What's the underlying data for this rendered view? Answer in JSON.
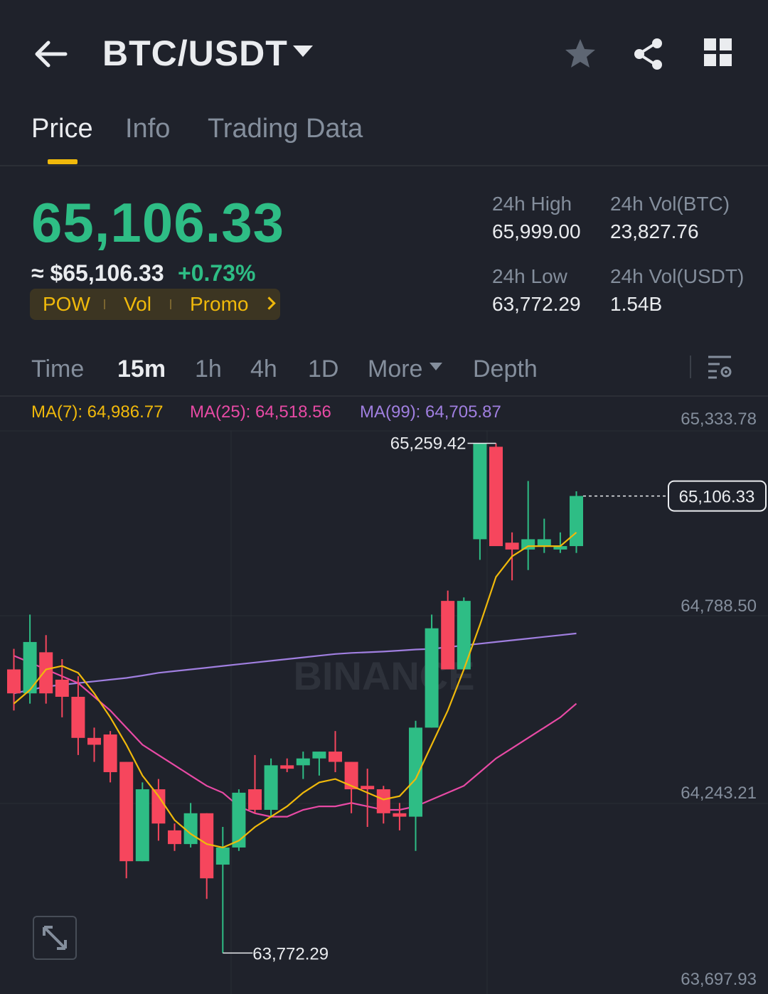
{
  "header": {
    "pair": "BTC/USDT",
    "icons": [
      "back-arrow-icon",
      "caret-down-icon",
      "star-icon",
      "share-icon",
      "grid-icon"
    ]
  },
  "tabs": [
    {
      "label": "Price",
      "active": true
    },
    {
      "label": "Info",
      "active": false
    },
    {
      "label": "Trading Data",
      "active": false
    }
  ],
  "price": {
    "last": "65,106.33",
    "approx": "≈ $65,106.33",
    "change": "+0.73%",
    "color": "#2ebd85"
  },
  "tags": [
    "POW",
    "Vol",
    "Promo"
  ],
  "stats": {
    "high_label": "24h High",
    "high_value": "65,999.00",
    "low_label": "24h Low",
    "low_value": "63,772.29",
    "volbtc_label": "24h Vol(BTC)",
    "volbtc_value": "23,827.76",
    "volusdt_label": "24h Vol(USDT)",
    "volusdt_value": "1.54B"
  },
  "intervals": [
    {
      "label": "Time",
      "active": false
    },
    {
      "label": "15m",
      "active": true
    },
    {
      "label": "1h",
      "active": false
    },
    {
      "label": "4h",
      "active": false
    },
    {
      "label": "1D",
      "active": false
    },
    {
      "label": "More",
      "active": false
    },
    {
      "label": "Depth",
      "active": false
    }
  ],
  "ma": {
    "ma7": "MA(7): 64,986.77",
    "ma25": "MA(25): 64,518.56",
    "ma99": "MA(99): 64,705.87"
  },
  "chart_data": {
    "type": "candlestick",
    "y_ticks": [
      "65,333.78",
      "64,788.50",
      "64,243.21",
      "63,697.93"
    ],
    "ylim": [
      63697.93,
      65333.78
    ],
    "watermark": "BINANCE",
    "high_label": "65,259.42",
    "low_label": "63,772.29",
    "last_label": "65,106.33",
    "last_price": 65106.33,
    "colors": {
      "up": "#2ebd85",
      "down": "#f6465d",
      "ma7": "#f0b90b",
      "ma25": "#e84aa5",
      "ma99": "#a07fe0"
    },
    "candles": [
      {
        "o": 64600,
        "h": 64660,
        "l": 64480,
        "c": 64530
      },
      {
        "o": 64530,
        "h": 64760,
        "l": 64500,
        "c": 64680
      },
      {
        "o": 64650,
        "h": 64700,
        "l": 64500,
        "c": 64530
      },
      {
        "o": 64570,
        "h": 64630,
        "l": 64460,
        "c": 64520
      },
      {
        "o": 64520,
        "h": 64580,
        "l": 64350,
        "c": 64400
      },
      {
        "o": 64400,
        "h": 64430,
        "l": 64330,
        "c": 64380
      },
      {
        "o": 64410,
        "h": 64420,
        "l": 64270,
        "c": 64300
      },
      {
        "o": 64330,
        "h": 64330,
        "l": 63990,
        "c": 64040
      },
      {
        "o": 64040,
        "h": 64270,
        "l": 64040,
        "c": 64250
      },
      {
        "o": 64250,
        "h": 64280,
        "l": 64100,
        "c": 64150
      },
      {
        "o": 64130,
        "h": 64150,
        "l": 64070,
        "c": 64090
      },
      {
        "o": 64090,
        "h": 64210,
        "l": 64080,
        "c": 64180
      },
      {
        "o": 64180,
        "h": 64180,
        "l": 63930,
        "c": 63990
      },
      {
        "o": 64030,
        "h": 64140,
        "l": 63772,
        "c": 64080
      },
      {
        "o": 64080,
        "h": 64250,
        "l": 64070,
        "c": 64240
      },
      {
        "o": 64250,
        "h": 64350,
        "l": 64180,
        "c": 64190
      },
      {
        "o": 64190,
        "h": 64340,
        "l": 64170,
        "c": 64320
      },
      {
        "o": 64320,
        "h": 64340,
        "l": 64300,
        "c": 64310
      },
      {
        "o": 64320,
        "h": 64360,
        "l": 64280,
        "c": 64340
      },
      {
        "o": 64340,
        "h": 64360,
        "l": 64290,
        "c": 64360
      },
      {
        "o": 64360,
        "h": 64420,
        "l": 64300,
        "c": 64330
      },
      {
        "o": 64330,
        "h": 64330,
        "l": 64180,
        "c": 64250
      },
      {
        "o": 64260,
        "h": 64310,
        "l": 64140,
        "c": 64250
      },
      {
        "o": 64250,
        "h": 64260,
        "l": 64150,
        "c": 64180
      },
      {
        "o": 64180,
        "h": 64210,
        "l": 64130,
        "c": 64170
      },
      {
        "o": 64170,
        "h": 64450,
        "l": 64070,
        "c": 64430
      },
      {
        "o": 64430,
        "h": 64760,
        "l": 64430,
        "c": 64720
      },
      {
        "o": 64800,
        "h": 64830,
        "l": 64600,
        "c": 64600
      },
      {
        "o": 64600,
        "h": 64810,
        "l": 64600,
        "c": 64800
      },
      {
        "o": 64980,
        "h": 65259.42,
        "l": 64920,
        "c": 65259.42
      },
      {
        "o": 65250,
        "h": 65260,
        "l": 64970,
        "c": 64960
      },
      {
        "o": 64970,
        "h": 65000,
        "l": 64860,
        "c": 64950
      },
      {
        "o": 64950,
        "h": 65150,
        "l": 64890,
        "c": 64980
      },
      {
        "o": 64960,
        "h": 65040,
        "l": 64940,
        "c": 64980
      },
      {
        "o": 64950,
        "h": 65000,
        "l": 64940,
        "c": 64960
      },
      {
        "o": 64960,
        "h": 65120,
        "l": 64940,
        "c": 65106.33
      }
    ],
    "ma7": [
      64500,
      64540,
      64600,
      64610,
      64590,
      64530,
      64460,
      64380,
      64290,
      64230,
      64160,
      64120,
      64090,
      64080,
      64100,
      64140,
      64170,
      64200,
      64240,
      64270,
      64280,
      64260,
      64240,
      64220,
      64230,
      64280,
      64380,
      64480,
      64600,
      64730,
      64870,
      64930,
      64960,
      64960,
      64960,
      65000
    ],
    "ma25": [
      64640,
      64620,
      64600,
      64580,
      64560,
      64520,
      64480,
      64430,
      64380,
      64350,
      64320,
      64290,
      64260,
      64240,
      64200,
      64180,
      64170,
      64170,
      64190,
      64200,
      64200,
      64210,
      64200,
      64190,
      64190,
      64200,
      64220,
      64240,
      64260,
      64300,
      64340,
      64370,
      64400,
      64430,
      64460,
      64500
    ],
    "ma99": [
      64530,
      64540,
      64550,
      64555,
      64560,
      64565,
      64570,
      64575,
      64582,
      64590,
      64595,
      64600,
      64605,
      64610,
      64615,
      64620,
      64625,
      64630,
      64635,
      64640,
      64645,
      64648,
      64650,
      64652,
      64655,
      64658,
      64660,
      64665,
      64670,
      64675,
      64680,
      64685,
      64690,
      64695,
      64700,
      64705
    ]
  }
}
